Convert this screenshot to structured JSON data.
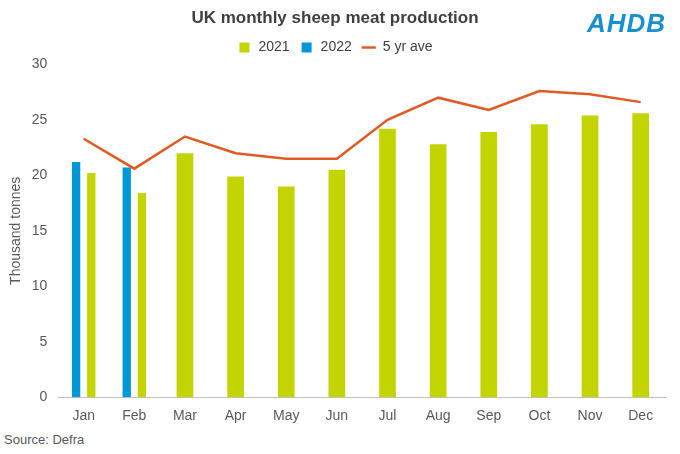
{
  "chart_data": {
    "type": "bar",
    "title": "UK monthly sheep meat production",
    "logo": "AHDB",
    "source": "Source: Defra",
    "y_label": "Thousand tonnes",
    "categories": [
      "Jan",
      "Feb",
      "Mar",
      "Apr",
      "May",
      "Jun",
      "Jul",
      "Aug",
      "Sep",
      "Oct",
      "Nov",
      "Dec"
    ],
    "series": [
      {
        "name": "2021",
        "type": "bar",
        "color": "#c3d500",
        "values": [
          20.2,
          18.4,
          22.0,
          19.9,
          19.0,
          20.5,
          24.2,
          22.8,
          23.9,
          24.6,
          25.4,
          25.6
        ]
      },
      {
        "name": "2022",
        "type": "bar",
        "color": "#0097d6",
        "values": [
          21.2,
          20.7,
          null,
          null,
          null,
          null,
          null,
          null,
          null,
          null,
          null,
          null
        ]
      },
      {
        "name": "5 yr ave",
        "type": "line",
        "color": "#e05b24",
        "values": [
          23.3,
          20.6,
          23.5,
          22.0,
          21.5,
          21.5,
          25.0,
          27.0,
          25.9,
          27.6,
          27.3,
          26.6
        ]
      }
    ],
    "ylim": [
      0,
      30
    ],
    "yticks": [
      0,
      5,
      10,
      15,
      20,
      25,
      30
    ],
    "grid": false,
    "legend": "top"
  }
}
